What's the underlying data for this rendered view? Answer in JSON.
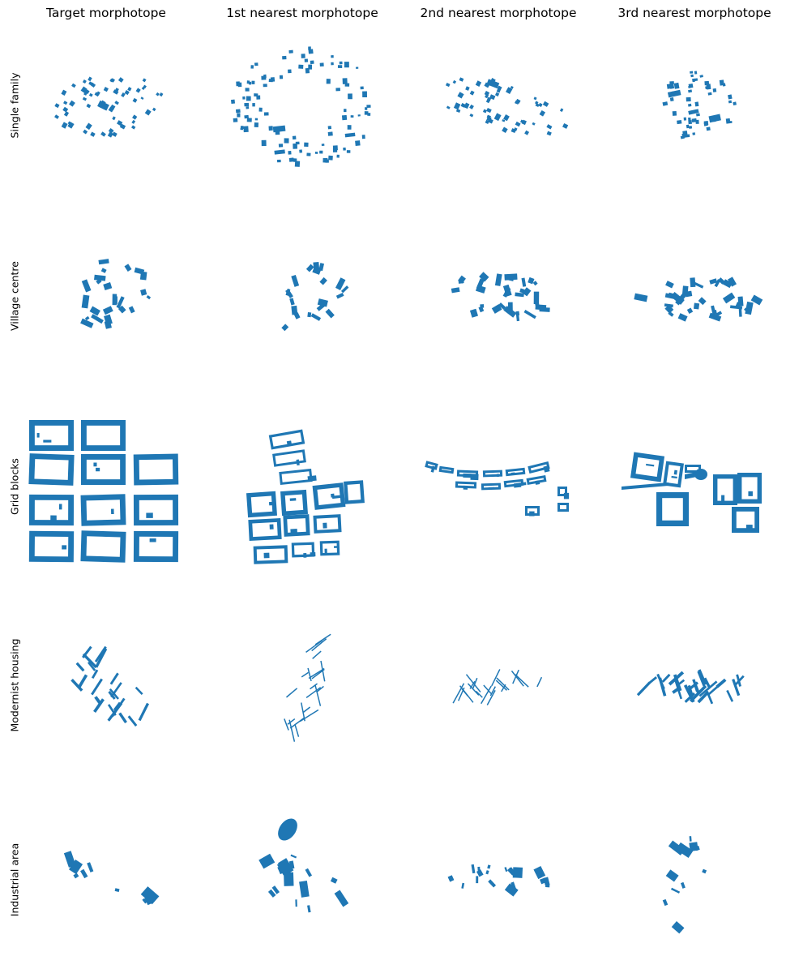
{
  "figure": {
    "column_headers": [
      "Target morphotope",
      "1st nearest morphotope",
      "2nd nearest morphotope",
      "3rd nearest morphotope"
    ],
    "row_labels": [
      "Single family",
      "Village centre",
      "Grid blocks",
      "Modernist housing",
      "Industrial area"
    ],
    "fill_color": "#1f77b4",
    "background_color": "#ffffff"
  }
}
